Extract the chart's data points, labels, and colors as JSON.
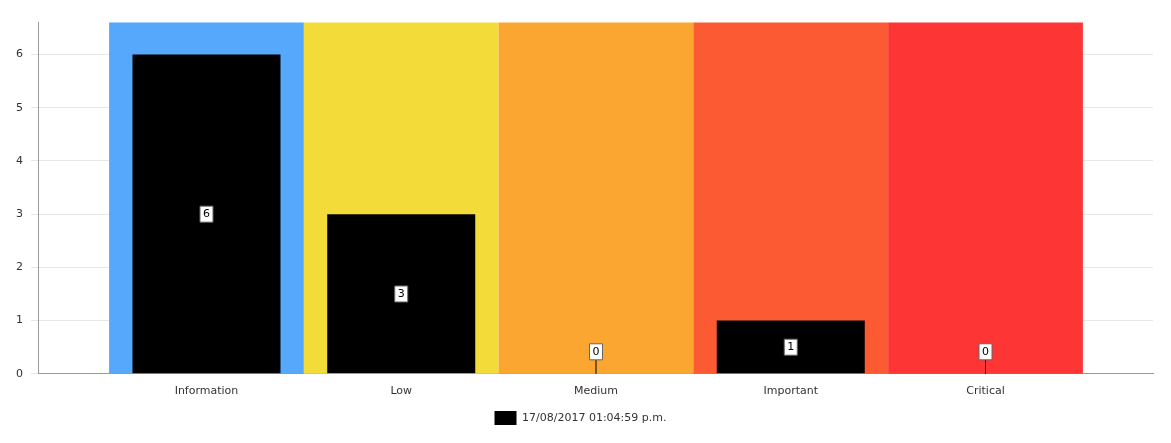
{
  "chart_data": {
    "type": "bar",
    "categories": [
      "Information",
      "Low",
      "Medium",
      "Important",
      "Critical"
    ],
    "series": [
      {
        "name": "17/08/2017 01:04:59 p.m.",
        "color": "#000000",
        "values": [
          6,
          3,
          0,
          1,
          0
        ]
      }
    ],
    "ylim": [
      0,
      6.6
    ],
    "yticks": [
      0,
      1,
      2,
      3,
      4,
      5,
      6
    ],
    "grid": "y",
    "legend": "bottom",
    "data_labels": true,
    "bands": [
      {
        "axis": "x",
        "from": "Information",
        "to": "Information",
        "color": "#55a8fb"
      },
      {
        "axis": "x",
        "from": "Low",
        "to": "Low",
        "color": "#f3db3a"
      },
      {
        "axis": "x",
        "from": "Medium",
        "to": "Medium",
        "color": "#fba631"
      },
      {
        "axis": "x",
        "from": "Important",
        "to": "Important",
        "color": "#fc5a32"
      },
      {
        "axis": "x",
        "from": "Critical",
        "to": "Critical",
        "color": "#fd3535"
      }
    ]
  }
}
